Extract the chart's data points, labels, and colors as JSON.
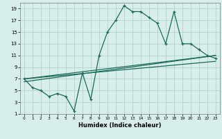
{
  "xlabel": "Humidex (Indice chaleur)",
  "bg_color": "#d8eeea",
  "grid_color": "#b0d4cc",
  "line_color": "#1a6b5a",
  "xlim": [
    -0.5,
    23.5
  ],
  "ylim": [
    1,
    20
  ],
  "xticks": [
    0,
    1,
    2,
    3,
    4,
    5,
    6,
    7,
    8,
    9,
    10,
    11,
    12,
    13,
    14,
    15,
    16,
    17,
    18,
    19,
    20,
    21,
    22,
    23
  ],
  "yticks": [
    1,
    3,
    5,
    7,
    9,
    11,
    13,
    15,
    17,
    19
  ],
  "line1_x": [
    0,
    1,
    2,
    3,
    4,
    5,
    6,
    7,
    8,
    9,
    10,
    11,
    12,
    13,
    14,
    15,
    16,
    17,
    18,
    19,
    20,
    21,
    22,
    23
  ],
  "line1_y": [
    7,
    5.5,
    5,
    4,
    4.5,
    4,
    1.5,
    8,
    3.5,
    11,
    15,
    17,
    19.5,
    18.5,
    18.5,
    17.5,
    16.5,
    13,
    18.5,
    13,
    13,
    12,
    11,
    10.5
  ],
  "line2_x": [
    0,
    23
  ],
  "line2_y": [
    7,
    11
  ],
  "line3_x": [
    0,
    23
  ],
  "line3_y": [
    6.5,
    11
  ],
  "line4_x": [
    0,
    23
  ],
  "line4_y": [
    7,
    10
  ]
}
